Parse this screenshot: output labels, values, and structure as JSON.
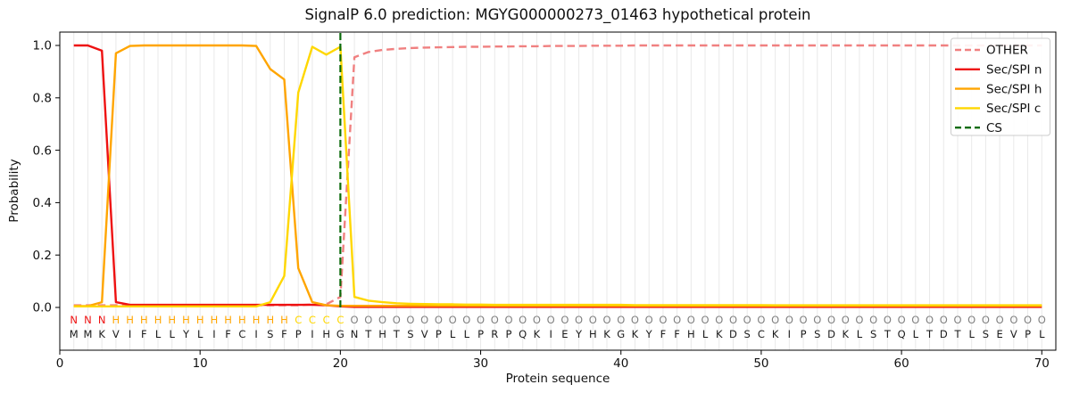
{
  "chart_data": {
    "type": "line",
    "title": "SignalP 6.0 prediction: MGYG000000273_01463 hypothetical protein",
    "xlabel": "Protein sequence",
    "ylabel": "Probability",
    "xticks": [
      0,
      10,
      20,
      30,
      40,
      50,
      60,
      70
    ],
    "yticks": [
      0.0,
      0.2,
      0.4,
      0.6,
      0.8,
      1.0
    ],
    "xlim": [
      0,
      71
    ],
    "ylim": [
      -0.16,
      1.05
    ],
    "grid": "vertical line per residue, light gray",
    "legend_position": "upper right",
    "x_is_residue_index": "1..70",
    "series": [
      {
        "name": "OTHER",
        "color": "#f08080",
        "dash": true,
        "values": [
          0.008,
          0.008,
          0.008,
          0.008,
          0.008,
          0.008,
          0.008,
          0.008,
          0.008,
          0.008,
          0.008,
          0.008,
          0.008,
          0.008,
          0.008,
          0.008,
          0.008,
          0.012,
          0.012,
          0.04,
          0.955,
          0.975,
          0.983,
          0.987,
          0.99,
          0.992,
          0.993,
          0.994,
          0.995,
          0.995,
          0.996,
          0.996,
          0.997,
          0.997,
          0.998,
          0.998,
          0.998,
          0.999,
          0.999,
          0.999,
          1,
          1,
          1,
          1,
          1,
          1,
          1,
          1,
          1,
          1,
          1,
          1,
          1,
          1,
          1,
          1,
          1,
          1,
          1,
          1,
          1,
          1,
          1,
          1,
          1,
          1,
          1,
          1,
          1,
          1
        ]
      },
      {
        "name": "Sec/SPI n",
        "color": "#ee1111",
        "dash": false,
        "values": [
          1,
          1,
          0.98,
          0.02,
          0.01,
          0.01,
          0.01,
          0.01,
          0.01,
          0.01,
          0.01,
          0.01,
          0.01,
          0.01,
          0.01,
          0.01,
          0.01,
          0.01,
          0.008,
          0.004,
          0.002,
          0.002,
          0.002,
          0.002,
          0.002,
          0.002,
          0.002,
          0.002,
          0.002,
          0.002,
          0.002,
          0.002,
          0.002,
          0.002,
          0.002,
          0.002,
          0.002,
          0.002,
          0.002,
          0.002,
          0.002,
          0.002,
          0.002,
          0.002,
          0.002,
          0.002,
          0.002,
          0.002,
          0.002,
          0.002,
          0.002,
          0.002,
          0.002,
          0.002,
          0.002,
          0.002,
          0.002,
          0.002,
          0.002,
          0.002,
          0.002,
          0.002,
          0.002,
          0.002,
          0.002,
          0.002,
          0.002,
          0.002,
          0.002,
          0.002
        ]
      },
      {
        "name": "Sec/SPI h",
        "color": "#ffa500",
        "dash": false,
        "values": [
          0.005,
          0.005,
          0.02,
          0.97,
          0.998,
          1,
          1,
          1,
          1,
          1,
          1,
          1,
          1,
          0.998,
          0.91,
          0.87,
          0.15,
          0.02,
          0.008,
          0.006,
          0.006,
          0.006,
          0.006,
          0.006,
          0.006,
          0.006,
          0.006,
          0.006,
          0.006,
          0.006,
          0.006,
          0.006,
          0.006,
          0.006,
          0.006,
          0.006,
          0.006,
          0.006,
          0.006,
          0.006,
          0.006,
          0.006,
          0.006,
          0.006,
          0.006,
          0.006,
          0.006,
          0.006,
          0.006,
          0.006,
          0.006,
          0.006,
          0.006,
          0.006,
          0.006,
          0.006,
          0.006,
          0.006,
          0.006,
          0.006,
          0.006,
          0.006,
          0.006,
          0.006,
          0.006,
          0.006,
          0.006,
          0.006,
          0.006,
          0.006
        ]
      },
      {
        "name": "Sec/SPI c",
        "color": "#ffd700",
        "dash": false,
        "values": [
          0.004,
          0.004,
          0.004,
          0.004,
          0.004,
          0.004,
          0.004,
          0.004,
          0.004,
          0.004,
          0.004,
          0.004,
          0.004,
          0.004,
          0.02,
          0.12,
          0.82,
          0.995,
          0.965,
          0.995,
          0.04,
          0.026,
          0.02,
          0.016,
          0.014,
          0.013,
          0.012,
          0.012,
          0.011,
          0.011,
          0.01,
          0.01,
          0.01,
          0.01,
          0.01,
          0.01,
          0.01,
          0.01,
          0.01,
          0.01,
          0.009,
          0.009,
          0.009,
          0.009,
          0.009,
          0.009,
          0.009,
          0.009,
          0.009,
          0.009,
          0.008,
          0.008,
          0.008,
          0.008,
          0.008,
          0.008,
          0.008,
          0.008,
          0.008,
          0.008,
          0.008,
          0.008,
          0.008,
          0.008,
          0.008,
          0.008,
          0.008,
          0.008,
          0.008,
          0.008
        ]
      }
    ],
    "cs_line": {
      "name": "CS",
      "color": "#0b6b0b",
      "dash": true,
      "x": 20
    },
    "sequence": "MMKVIFLLYLIFCISFPIHGNTHTSVPLLPRPQKIEYHKGKYFFHLKDSCKIPSDKLSTQLTDTLSEVPL",
    "regions": "NNNHHHHHHHHHHHHHCCCCOOOOOOOOOOOOOOOOOOOOOOOOOOOOOOOOOOOOOOOOOOOOOOOOOO",
    "region_colors": {
      "N": "#ee1111",
      "H": "#ffa500",
      "C": "#ffd700",
      "O": "#808080"
    },
    "sequence_color": "#1a1a1a"
  }
}
